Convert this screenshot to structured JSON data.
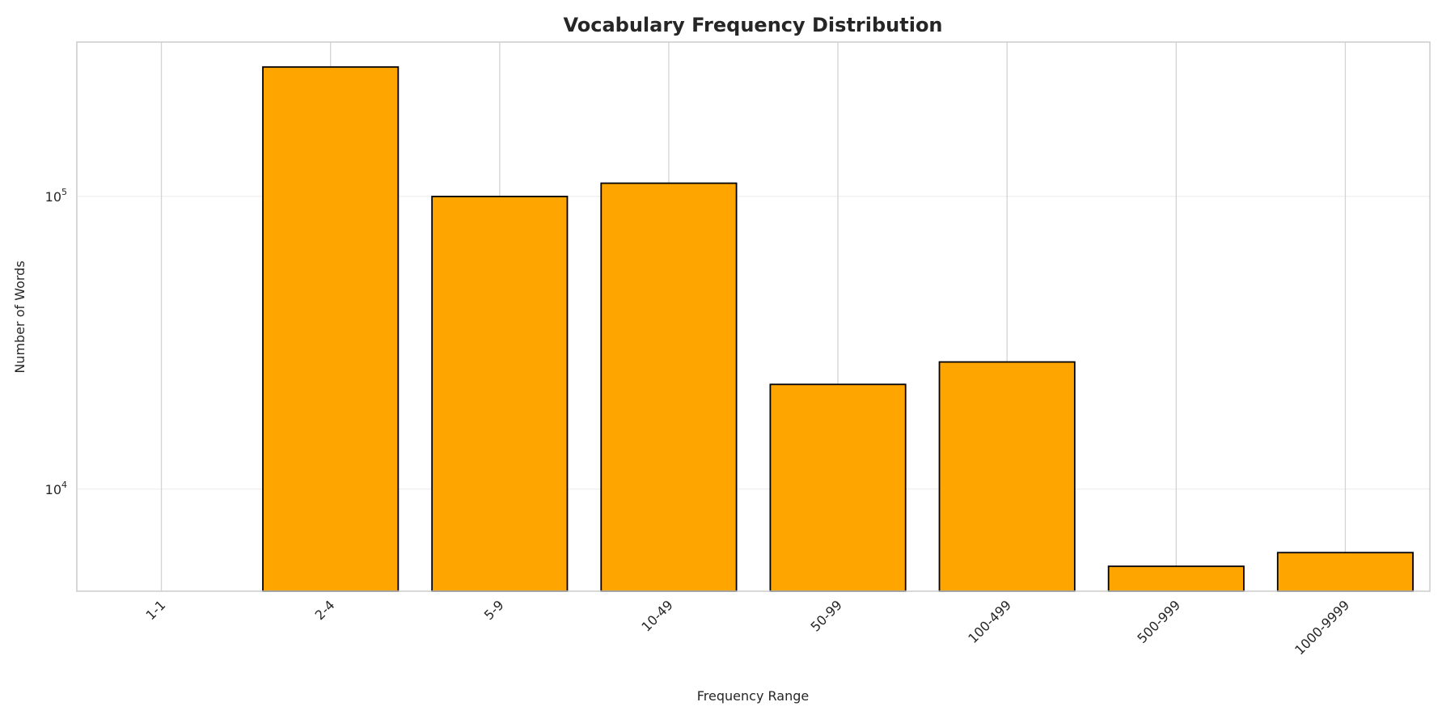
{
  "chart_data": {
    "type": "bar",
    "title": "Vocabulary Frequency Distribution",
    "xlabel": "Frequency Range",
    "ylabel": "Number of Words",
    "yscale": "log",
    "ylim": [
      4480,
      337000
    ],
    "yticks": [
      {
        "value": 10000,
        "base": "10",
        "exp": "4"
      },
      {
        "value": 100000,
        "base": "10",
        "exp": "5"
      }
    ],
    "categories": [
      "1-1",
      "2-4",
      "5-9",
      "10-49",
      "50-99",
      "100-499",
      "500-999",
      "1000-9999"
    ],
    "values": [
      null,
      277000,
      100000,
      111000,
      22800,
      27200,
      5450,
      6070
    ],
    "grid": true,
    "colors": {
      "bar": "#FFA500",
      "edge": "#000000",
      "grid": "#d3d3d3"
    }
  }
}
